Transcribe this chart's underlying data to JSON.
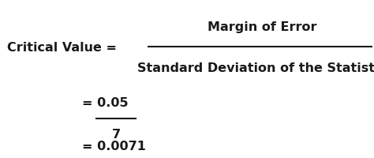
{
  "background_color": "#ffffff",
  "text_color": "#1a1a1a",
  "label_left": "Critical Value = ",
  "numerator_main": "Margin of Error",
  "denominator_main": "Standard Deviation of the Statistic",
  "eq_num": "= 0.05",
  "eq_denom": "7",
  "eq_result": "= 0.0071",
  "font_size": 11.5,
  "fig_width": 4.74,
  "fig_height": 2.01,
  "dpi": 100
}
